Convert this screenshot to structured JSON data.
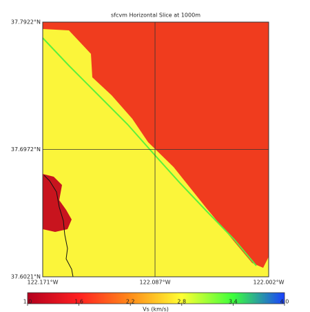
{
  "chart_data": {
    "type": "map",
    "title": "sfcvm Horizontal Slice at 1000m",
    "xlim": [
      -122.171,
      -122.002
    ],
    "ylim": [
      37.6021,
      37.7922
    ],
    "xticks": [
      {
        "value": -122.171,
        "label": "122.171°W"
      },
      {
        "value": -122.087,
        "label": "122.087°W"
      },
      {
        "value": -122.002,
        "label": "122.002°W"
      }
    ],
    "yticks": [
      {
        "value": 37.6021,
        "label": "37.6021°N"
      },
      {
        "value": 37.6972,
        "label": "37.6972°N"
      },
      {
        "value": 37.7922,
        "label": "37.7922°N"
      }
    ],
    "grid": true,
    "colorbar": {
      "label": "Vs (km/s)",
      "lim": [
        1,
        4
      ],
      "ticks": [
        {
          "value": 1,
          "label": "1.0"
        },
        1.6,
        2.2,
        2.8,
        3.4,
        {
          "value": 4,
          "label": "4.0"
        }
      ],
      "colors": [
        "#b3001e",
        "#ff2020",
        "#ff8c1a",
        "#ffff33",
        "#3cff3c",
        "#1a40ff"
      ]
    }
  }
}
